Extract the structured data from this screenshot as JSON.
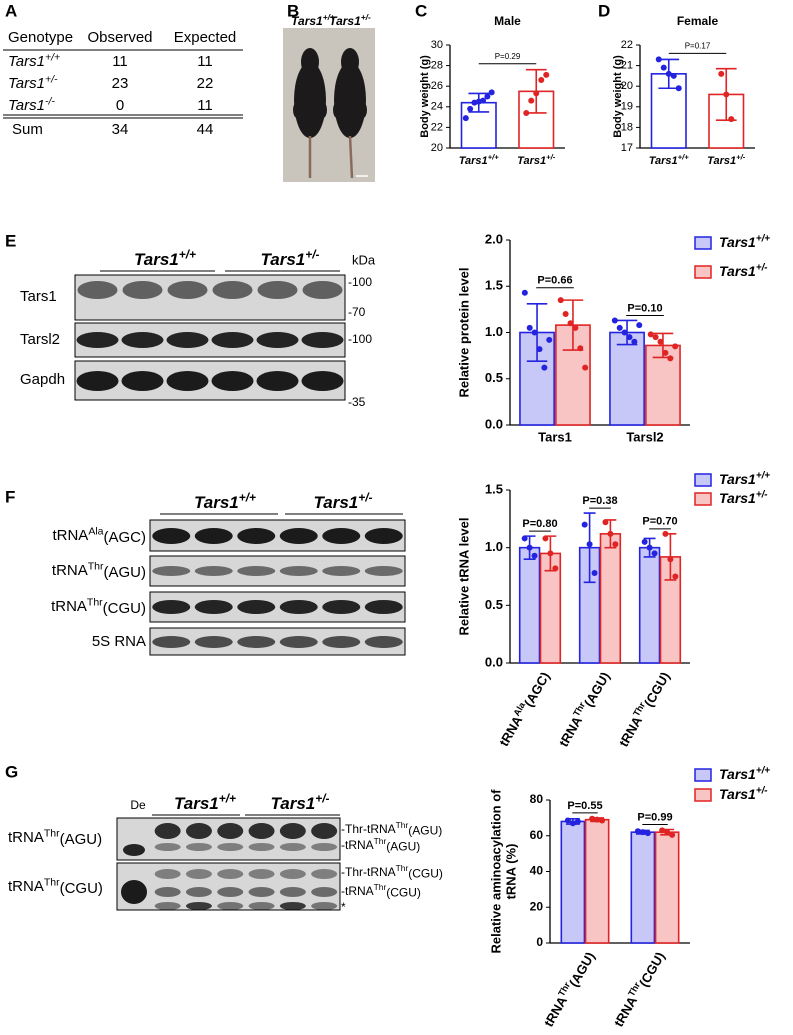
{
  "panel_labels": [
    "A",
    "B",
    "C",
    "D",
    "E",
    "F",
    "G"
  ],
  "table": {
    "header": [
      "Genotype",
      "Observed",
      "Expected"
    ],
    "rows": [
      [
        {
          "base": "Tars1",
          "sup": "+/+"
        },
        11,
        11
      ],
      [
        {
          "base": "Tars1",
          "sup": "+/-"
        },
        23,
        22
      ],
      [
        {
          "base": "Tars1",
          "sup": "-/-"
        },
        0,
        11
      ],
      [
        "Sum",
        34,
        44
      ]
    ]
  },
  "photo": {
    "labels": [
      {
        "base": "Tars1",
        "sup": "+/+"
      },
      {
        "base": "Tars1",
        "sup": "+/-"
      }
    ]
  },
  "blot_e": {
    "groups": [
      {
        "base": "Tars1",
        "sup": "+/+"
      },
      {
        "base": "Tars1",
        "sup": "+/-"
      }
    ],
    "unit": "kDa",
    "rows": [
      "Tars1",
      "Tarsl2",
      "Gapdh"
    ],
    "markers": [
      "-100",
      "-70",
      "-100",
      "-35"
    ]
  },
  "blot_f": {
    "groups": [
      {
        "base": "Tars1",
        "sup": "+/+"
      },
      {
        "base": "Tars1",
        "sup": "+/-"
      }
    ],
    "rows": [
      {
        "base": "tRNA",
        "sup": "Ala",
        "rest": "(AGC)"
      },
      {
        "base": "tRNA",
        "sup": "Thr",
        "rest": "(AGU)"
      },
      {
        "base": "tRNA",
        "sup": "Thr",
        "rest": "(CGU)"
      },
      "5S RNA"
    ]
  },
  "blot_g": {
    "groups": [
      {
        "base": "Tars1",
        "sup": "+/+"
      },
      {
        "base": "Tars1",
        "sup": "+/-"
      }
    ],
    "ladder": "De",
    "rows": [
      {
        "base": "tRNA",
        "sup": "Thr",
        "rest": "(AGU)"
      },
      {
        "base": "tRNA",
        "sup": "Thr",
        "rest": "(CGU)"
      }
    ],
    "bands": [
      {
        "base": "-Thr-tRNA",
        "sup": "Thr",
        "rest": "(AGU)"
      },
      {
        "base": "-tRNA",
        "sup": "Thr",
        "rest": "(AGU)"
      },
      {
        "base": "-Thr-tRNA",
        "sup": "Thr",
        "rest": "(CGU)"
      },
      {
        "base": "-tRNA",
        "sup": "Thr",
        "rest": "(CGU)"
      },
      "*"
    ]
  },
  "chart_data": [
    {
      "type": "bar",
      "title": "Male",
      "ylabel": "Body weight (g)",
      "categories": [
        {
          "base": "Tars1",
          "sup": "+/+"
        },
        {
          "base": "Tars1",
          "sup": "+/-"
        }
      ],
      "colors": [
        "#2323e0",
        "#e02424"
      ],
      "values": [
        24.4,
        25.5
      ],
      "errors": [
        0.9,
        2.1
      ],
      "points": [
        [
          22.9,
          23.8,
          24.4,
          24.5,
          24.6,
          25.0,
          25.4
        ],
        [
          23.4,
          24.6,
          25.3,
          26.6,
          27.1
        ]
      ],
      "ylim": [
        20,
        30
      ],
      "yticks": [
        20,
        22,
        24,
        26,
        28,
        30
      ],
      "annotations": [
        "P=0.29"
      ]
    },
    {
      "type": "bar",
      "title": "Female",
      "ylabel": "Body weight (g)",
      "categories": [
        {
          "base": "Tars1",
          "sup": "+/+"
        },
        {
          "base": "Tars1",
          "sup": "+/-"
        }
      ],
      "colors": [
        "#2323e0",
        "#e02424"
      ],
      "values": [
        20.6,
        19.6
      ],
      "errors": [
        0.7,
        1.25
      ],
      "points": [
        [
          21.3,
          20.9,
          20.6,
          20.5,
          19.9
        ],
        [
          20.6,
          19.6,
          18.4
        ]
      ],
      "ylim": [
        17,
        22
      ],
      "yticks": [
        17,
        18,
        19,
        20,
        21,
        22
      ],
      "annotations": [
        "P=0.17"
      ]
    },
    {
      "type": "grouped_bar",
      "ylabel": "Relative protein level",
      "categories": [
        "Tars1",
        "Tarsl2"
      ],
      "series": [
        {
          "name": {
            "base": "Tars1",
            "sup": "+/+"
          },
          "color": "#2323e0",
          "fill": "#c8c8f8",
          "values": [
            1.0,
            1.0
          ],
          "errors": [
            0.31,
            0.13
          ],
          "points": [
            [
              1.43,
              1.05,
              1.0,
              0.82,
              0.62,
              0.92
            ],
            [
              1.13,
              1.05,
              1.0,
              0.95,
              0.9,
              1.08
            ]
          ]
        },
        {
          "name": {
            "base": "Tars1",
            "sup": "+/-"
          },
          "color": "#e02424",
          "fill": "#f8c4c4",
          "values": [
            1.08,
            0.86
          ],
          "errors": [
            0.27,
            0.13
          ],
          "points": [
            [
              1.35,
              1.2,
              1.1,
              1.05,
              0.83,
              0.62
            ],
            [
              0.98,
              0.95,
              0.9,
              0.78,
              0.72,
              0.85
            ]
          ]
        }
      ],
      "ylim": [
        0,
        2.0
      ],
      "yticks": [
        {
          "value": 0,
          "label": "0.0"
        },
        {
          "value": 0.5,
          "label": "0.5"
        },
        {
          "value": 1,
          "label": "1.0"
        },
        {
          "value": 1.5,
          "label": "1.5"
        },
        {
          "value": 2,
          "label": "2.0"
        }
      ],
      "annotations": [
        "P=0.66",
        "P=0.10"
      ]
    },
    {
      "type": "grouped_bar",
      "ylabel": "Relative tRNA level",
      "categories": [
        {
          "base": "tRNA",
          "sup": "Ala",
          "rest": "(AGC)"
        },
        {
          "base": "tRNA",
          "sup": "Thr",
          "rest": "(AGU)"
        },
        {
          "base": "tRNA",
          "sup": "Thr",
          "rest": "(CGU)"
        }
      ],
      "series": [
        {
          "name": {
            "base": "Tars1",
            "sup": "+/+"
          },
          "color": "#2323e0",
          "fill": "#c8c8f8",
          "values": [
            1.0,
            1.0,
            1.0
          ],
          "errors": [
            0.1,
            0.3,
            0.08
          ],
          "points": [
            [
              1.08,
              1.0,
              0.93
            ],
            [
              1.2,
              1.03,
              0.78
            ],
            [
              1.05,
              1.0,
              0.95
            ]
          ]
        },
        {
          "name": {
            "base": "Tars1",
            "sup": "+/-"
          },
          "color": "#e02424",
          "fill": "#f8c4c4",
          "values": [
            0.95,
            1.12,
            0.92
          ],
          "errors": [
            0.15,
            0.12,
            0.2
          ],
          "points": [
            [
              1.08,
              0.95,
              0.82
            ],
            [
              1.22,
              1.12,
              1.03
            ],
            [
              1.12,
              0.9,
              0.75
            ]
          ]
        }
      ],
      "ylim": [
        0,
        1.5
      ],
      "yticks": [
        {
          "value": 0,
          "label": "0.0"
        },
        {
          "value": 0.5,
          "label": "0.5"
        },
        {
          "value": 1,
          "label": "1.0"
        },
        {
          "value": 1.5,
          "label": "1.5"
        }
      ],
      "annotations": [
        "P=0.80",
        "P=0.38",
        "P=0.70"
      ]
    },
    {
      "type": "grouped_bar",
      "ylabel": [
        "Relative aminoacylation of",
        "tRNA (%)"
      ],
      "categories": [
        {
          "base": "tRNA",
          "sup": "Thr",
          "rest": "(AGU)"
        },
        {
          "base": "tRNA",
          "sup": "Thr",
          "rest": "(CGU)"
        }
      ],
      "series": [
        {
          "name": {
            "base": "Tars1",
            "sup": "+/+"
          },
          "color": "#2323e0",
          "fill": "#c8c8f8",
          "values": [
            68,
            62
          ],
          "errors": [
            1.5,
            1
          ],
          "points": [
            [
              68.5,
              67,
              68
            ],
            [
              62.5,
              62,
              61.5
            ]
          ]
        },
        {
          "name": {
            "base": "Tars1",
            "sup": "+/-"
          },
          "color": "#e02424",
          "fill": "#f8c4c4",
          "values": [
            69,
            62
          ],
          "errors": [
            1,
            1.5
          ],
          "points": [
            [
              69.5,
              69,
              68.5
            ],
            [
              63,
              62,
              60.5
            ]
          ]
        }
      ],
      "ylim": [
        0,
        80
      ],
      "yticks": [
        0,
        20,
        40,
        60,
        80
      ],
      "annotations": [
        "P=0.55",
        "P=0.99"
      ]
    }
  ]
}
